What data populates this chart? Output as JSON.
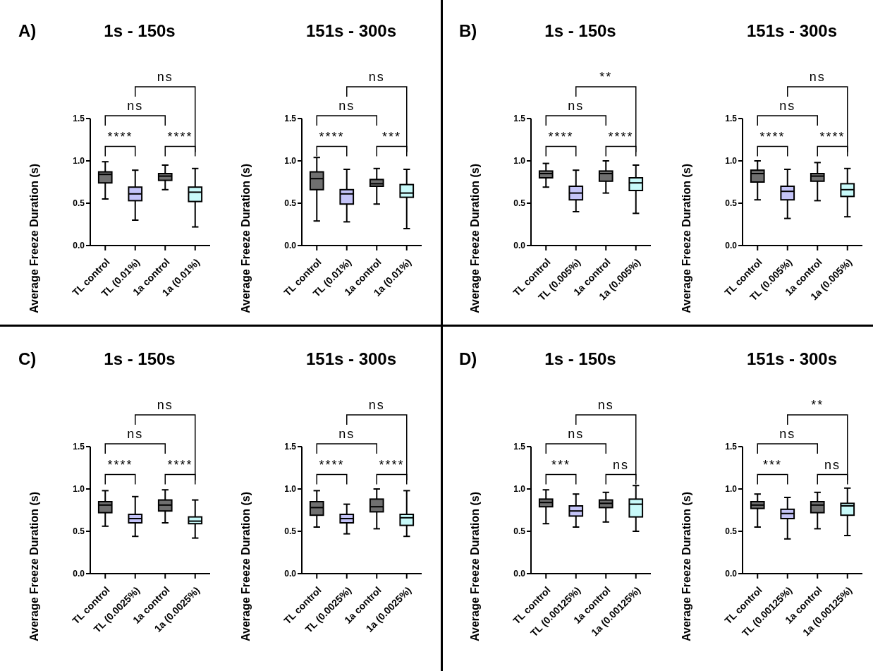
{
  "chart_data": [
    {
      "type": "box",
      "title": "1s - 150s",
      "ylabel": "Average Freeze Duration (s)",
      "categories": [
        "TL control",
        "TL (0.01%)",
        "1a control",
        "1a (0.01%)"
      ],
      "colors": [
        "#707070",
        "#c4c4f8",
        "#707070",
        "#c8fafa"
      ],
      "ylim": [
        0,
        1.5
      ],
      "yticks": [
        {
          "value": 0,
          "label": "0.0"
        },
        {
          "value": 0.5,
          "label": "0.5"
        },
        {
          "value": 1,
          "label": "1.0"
        },
        {
          "value": 1.5,
          "label": "1.5"
        }
      ],
      "annotations": [
        "****",
        "****",
        "ns",
        "ns",
        "A)"
      ],
      "boxes": [
        {
          "low": 0.55,
          "q1": 0.74,
          "median": 0.84,
          "q3": 0.87,
          "high": 0.99
        },
        {
          "low": 0.3,
          "q1": 0.53,
          "median": 0.61,
          "q3": 0.69,
          "high": 0.89
        },
        {
          "low": 0.66,
          "q1": 0.77,
          "median": 0.82,
          "q3": 0.85,
          "high": 0.95
        },
        {
          "low": 0.22,
          "q1": 0.52,
          "median": 0.63,
          "q3": 0.69,
          "high": 0.91
        }
      ]
    },
    {
      "type": "box",
      "title": "151s - 300s",
      "ylabel": "Average Freeze Duration (s)",
      "categories": [
        "TL control",
        "TL (0.01%)",
        "1a control",
        "1a (0.01%)"
      ],
      "colors": [
        "#707070",
        "#c4c4f8",
        "#707070",
        "#c8fafa"
      ],
      "ylim": [
        0,
        1.5
      ],
      "yticks": [
        {
          "value": 0,
          "label": "0.0"
        },
        {
          "value": 0.5,
          "label": "0.5"
        },
        {
          "value": 1,
          "label": "1.0"
        },
        {
          "value": 1.5,
          "label": "1.5"
        }
      ],
      "annotations": [
        "****",
        "***",
        "ns",
        "ns"
      ],
      "boxes": [
        {
          "low": 0.29,
          "q1": 0.66,
          "median": 0.79,
          "q3": 0.87,
          "high": 1.04
        },
        {
          "low": 0.28,
          "q1": 0.49,
          "median": 0.61,
          "q3": 0.66,
          "high": 0.9
        },
        {
          "low": 0.49,
          "q1": 0.7,
          "median": 0.73,
          "q3": 0.78,
          "high": 0.91
        },
        {
          "low": 0.2,
          "q1": 0.57,
          "median": 0.62,
          "q3": 0.72,
          "high": 0.9
        }
      ]
    },
    {
      "type": "box",
      "title": "1s - 150s",
      "ylabel": "Average Freeze Duration (s)",
      "categories": [
        "TL control",
        "TL (0.005%)",
        "1a control",
        "1a (0.005%)"
      ],
      "colors": [
        "#707070",
        "#c4c4f8",
        "#707070",
        "#c8fafa"
      ],
      "ylim": [
        0,
        1.5
      ],
      "yticks": [
        {
          "value": 0,
          "label": "0.0"
        },
        {
          "value": 0.5,
          "label": "0.5"
        },
        {
          "value": 1,
          "label": "1.0"
        },
        {
          "value": 1.5,
          "label": "1.5"
        }
      ],
      "annotations": [
        "****",
        "****",
        "ns",
        "**",
        "B)"
      ],
      "boxes": [
        {
          "low": 0.69,
          "q1": 0.8,
          "median": 0.85,
          "q3": 0.88,
          "high": 0.97
        },
        {
          "low": 0.4,
          "q1": 0.54,
          "median": 0.62,
          "q3": 0.7,
          "high": 0.89
        },
        {
          "low": 0.62,
          "q1": 0.76,
          "median": 0.85,
          "q3": 0.88,
          "high": 1.0
        },
        {
          "low": 0.38,
          "q1": 0.65,
          "median": 0.74,
          "q3": 0.8,
          "high": 0.95
        }
      ]
    },
    {
      "type": "box",
      "title": "151s - 300s",
      "ylabel": "Average Freeze Duration (s)",
      "categories": [
        "TL control",
        "TL (0.005%)",
        "1a control",
        "1a (0.005%)"
      ],
      "colors": [
        "#707070",
        "#c4c4f8",
        "#707070",
        "#c8fafa"
      ],
      "ylim": [
        0,
        1.5
      ],
      "yticks": [
        {
          "value": 0,
          "label": "0.0"
        },
        {
          "value": 0.5,
          "label": "0.5"
        },
        {
          "value": 1,
          "label": "1.0"
        },
        {
          "value": 1.5,
          "label": "1.5"
        }
      ],
      "annotations": [
        "****",
        "****",
        "ns",
        "ns"
      ],
      "boxes": [
        {
          "low": 0.54,
          "q1": 0.75,
          "median": 0.85,
          "q3": 0.89,
          "high": 1.0
        },
        {
          "low": 0.32,
          "q1": 0.54,
          "median": 0.64,
          "q3": 0.7,
          "high": 0.9
        },
        {
          "low": 0.53,
          "q1": 0.76,
          "median": 0.82,
          "q3": 0.85,
          "high": 0.98
        },
        {
          "low": 0.34,
          "q1": 0.58,
          "median": 0.66,
          "q3": 0.73,
          "high": 0.91
        }
      ]
    },
    {
      "type": "box",
      "title": "1s - 150s",
      "ylabel": "Average Freeze Duration (s)",
      "categories": [
        "TL control",
        "TL (0.0025%)",
        "1a control",
        "1a (0.0025%)"
      ],
      "colors": [
        "#707070",
        "#c4c4f8",
        "#707070",
        "#c8fafa"
      ],
      "ylim": [
        0,
        1.5
      ],
      "yticks": [
        {
          "value": 0,
          "label": "0.0"
        },
        {
          "value": 0.5,
          "label": "0.5"
        },
        {
          "value": 1,
          "label": "1.0"
        },
        {
          "value": 1.5,
          "label": "1.5"
        }
      ],
      "annotations": [
        "****",
        "****",
        "ns",
        "ns",
        "C)"
      ],
      "boxes": [
        {
          "low": 0.56,
          "q1": 0.72,
          "median": 0.81,
          "q3": 0.85,
          "high": 0.98
        },
        {
          "low": 0.44,
          "q1": 0.6,
          "median": 0.65,
          "q3": 0.7,
          "high": 0.91
        },
        {
          "low": 0.6,
          "q1": 0.74,
          "median": 0.81,
          "q3": 0.87,
          "high": 0.99
        },
        {
          "low": 0.42,
          "q1": 0.59,
          "median": 0.62,
          "q3": 0.67,
          "high": 0.87
        }
      ]
    },
    {
      "type": "box",
      "title": "151s - 300s",
      "ylabel": "Average Freeze Duration (s)",
      "categories": [
        "TL control",
        "TL (0.0025%)",
        "1a control",
        "1a (0.0025%)"
      ],
      "colors": [
        "#707070",
        "#c4c4f8",
        "#707070",
        "#c8fafa"
      ],
      "ylim": [
        0,
        1.5
      ],
      "yticks": [
        {
          "value": 0,
          "label": "0.0"
        },
        {
          "value": 0.5,
          "label": "0.5"
        },
        {
          "value": 1,
          "label": "1.0"
        },
        {
          "value": 1.5,
          "label": "1.5"
        }
      ],
      "annotations": [
        "****",
        "****",
        "ns",
        "ns"
      ],
      "boxes": [
        {
          "low": 0.55,
          "q1": 0.69,
          "median": 0.78,
          "q3": 0.85,
          "high": 0.98
        },
        {
          "low": 0.47,
          "q1": 0.6,
          "median": 0.65,
          "q3": 0.7,
          "high": 0.82
        },
        {
          "low": 0.53,
          "q1": 0.73,
          "median": 0.79,
          "q3": 0.88,
          "high": 1.0
        },
        {
          "low": 0.44,
          "q1": 0.57,
          "median": 0.66,
          "q3": 0.7,
          "high": 0.98
        }
      ]
    },
    {
      "type": "box",
      "title": "1s - 150s",
      "ylabel": "Average Freeze Duration (s)",
      "categories": [
        "TL control",
        "TL (0.00125%)",
        "1a control",
        "1a (0.00125%)"
      ],
      "colors": [
        "#707070",
        "#c4c4f8",
        "#707070",
        "#c8fafa"
      ],
      "ylim": [
        0,
        1.5
      ],
      "yticks": [
        {
          "value": 0,
          "label": "0.0"
        },
        {
          "value": 0.5,
          "label": "0.5"
        },
        {
          "value": 1,
          "label": "1.0"
        },
        {
          "value": 1.5,
          "label": "1.5"
        }
      ],
      "annotations": [
        "***",
        "ns",
        "ns",
        "ns",
        "D)"
      ],
      "boxes": [
        {
          "low": 0.59,
          "q1": 0.79,
          "median": 0.84,
          "q3": 0.88,
          "high": 0.99
        },
        {
          "low": 0.55,
          "q1": 0.68,
          "median": 0.74,
          "q3": 0.8,
          "high": 0.94
        },
        {
          "low": 0.61,
          "q1": 0.78,
          "median": 0.83,
          "q3": 0.87,
          "high": 0.96
        },
        {
          "low": 0.5,
          "q1": 0.67,
          "median": 0.82,
          "q3": 0.88,
          "high": 1.04
        }
      ]
    },
    {
      "type": "box",
      "title": "151s - 300s",
      "ylabel": "Average Freeze Duration (s)",
      "categories": [
        "TL control",
        "TL (0.00125%)",
        "1a control",
        "1a (0.00125%)"
      ],
      "colors": [
        "#707070",
        "#c4c4f8",
        "#707070",
        "#c8fafa"
      ],
      "ylim": [
        0,
        1.5
      ],
      "yticks": [
        {
          "value": 0,
          "label": "0.0"
        },
        {
          "value": 0.5,
          "label": "0.5"
        },
        {
          "value": 1,
          "label": "1.0"
        },
        {
          "value": 1.5,
          "label": "1.5"
        }
      ],
      "annotations": [
        "***",
        "ns",
        "ns",
        "**"
      ],
      "boxes": [
        {
          "low": 0.55,
          "q1": 0.77,
          "median": 0.81,
          "q3": 0.85,
          "high": 0.94
        },
        {
          "low": 0.41,
          "q1": 0.65,
          "median": 0.71,
          "q3": 0.76,
          "high": 0.9
        },
        {
          "low": 0.53,
          "q1": 0.72,
          "median": 0.81,
          "q3": 0.85,
          "high": 0.96
        },
        {
          "low": 0.45,
          "q1": 0.69,
          "median": 0.8,
          "q3": 0.83,
          "high": 1.01
        }
      ]
    }
  ]
}
